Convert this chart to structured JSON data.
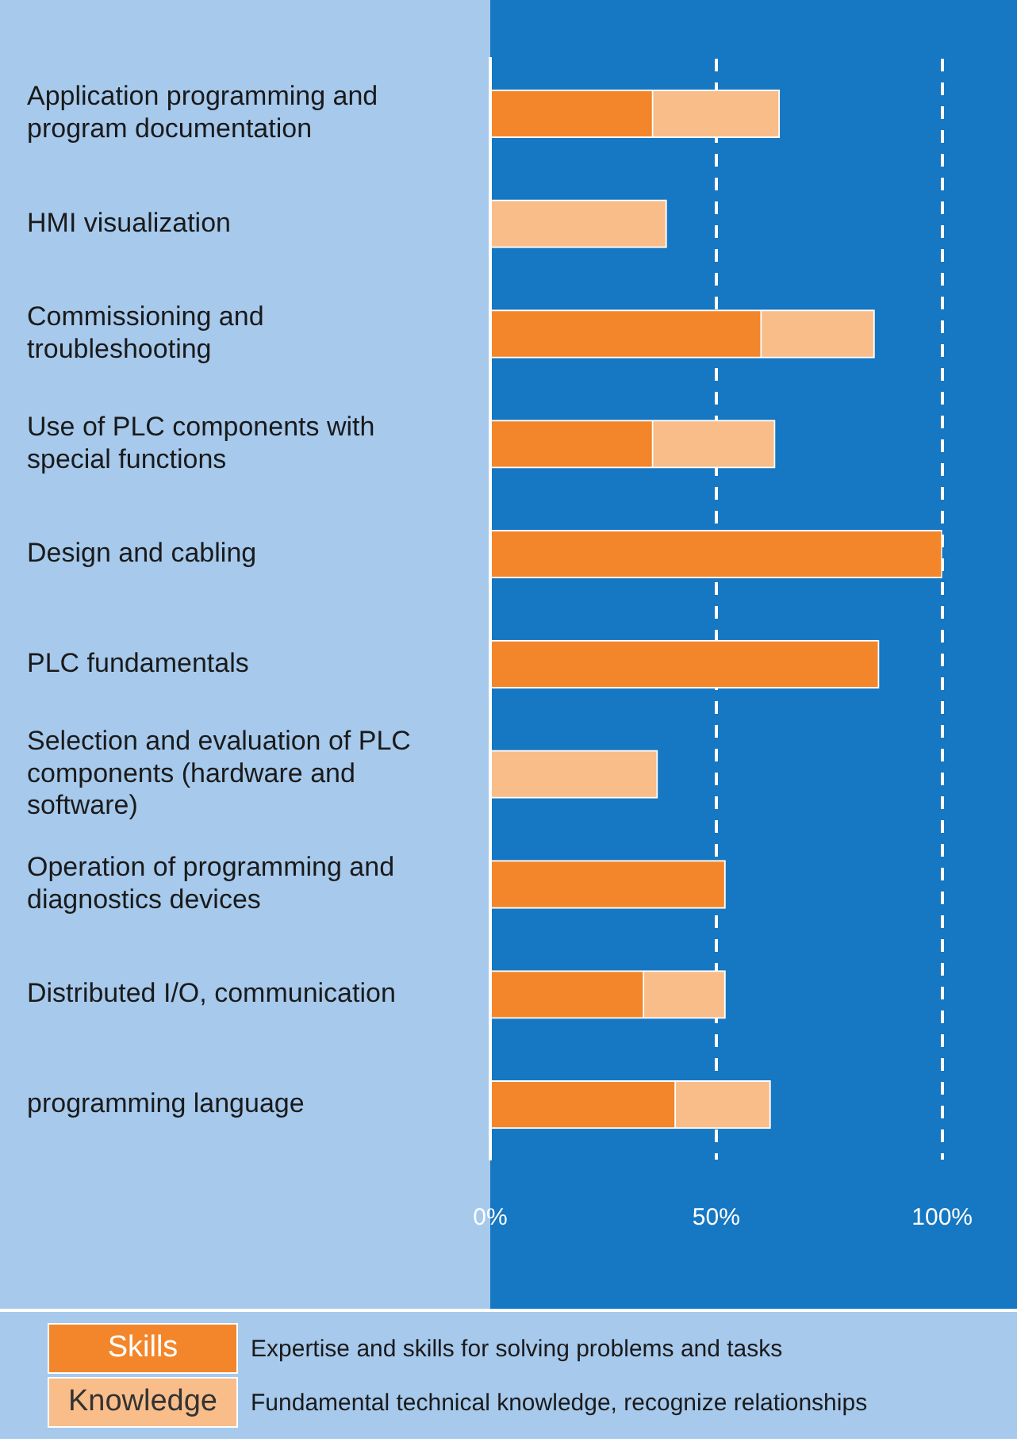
{
  "chart_data": {
    "type": "bar",
    "orientation": "horizontal",
    "stacked": true,
    "categories": [
      "Application programming and program documentation",
      "HMI visualization",
      "Commissioning and troubleshooting",
      "Use of PLC components with special functions",
      "Design and cabling",
      "PLC fundamentals",
      "Selection and evaluation of PLC components (hardware and software)",
      "Operation of programming and diagnostics devices",
      "Distributed I/O, communication",
      "programming language"
    ],
    "series": [
      {
        "name": "Skills",
        "color": "#f3862a",
        "values": [
          36,
          0,
          60,
          36,
          100,
          86,
          0,
          52,
          34,
          41
        ]
      },
      {
        "name": "Knowledge",
        "color": "#f9bd8a",
        "values": [
          28,
          39,
          25,
          27,
          0,
          0,
          37,
          0,
          18,
          21
        ]
      }
    ],
    "xlim": [
      0,
      100
    ],
    "xticks": [
      {
        "value": 0,
        "label": "0%"
      },
      {
        "value": 50,
        "label": "50%"
      },
      {
        "value": 100,
        "label": "100%"
      }
    ],
    "grid": "x",
    "line_style": "dashed",
    "legend": "bottom",
    "annotations": [
      "Expertise and skills for solving problems and tasks",
      "Fundamental technical knowledge, recognize relationships"
    ]
  }
}
